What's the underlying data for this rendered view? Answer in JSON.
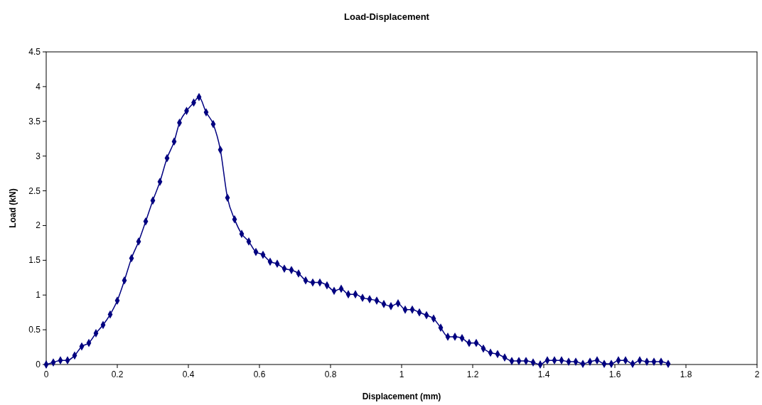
{
  "chart_data": {
    "type": "line",
    "title": "Load-Displacement",
    "xlabel": "Displacement (mm)",
    "ylabel": "Load (kN)",
    "xlim": [
      0,
      2
    ],
    "xticks": [
      0,
      0.2,
      0.4,
      0.6,
      0.8,
      1,
      1.2,
      1.4,
      1.6,
      1.8,
      2
    ],
    "ylim": [
      0,
      4.5
    ],
    "yticks": [
      0,
      0.5,
      1,
      1.5,
      2,
      2.5,
      3,
      3.5,
      4,
      4.5
    ],
    "grid": false,
    "marker": "diamond",
    "line_style": "solid",
    "series": [
      {
        "color": "#000080",
        "x": [
          0,
          0.02,
          0.04,
          0.06,
          0.08,
          0.1,
          0.12,
          0.14,
          0.16,
          0.18,
          0.2,
          0.22,
          0.24,
          0.26,
          0.28,
          0.3,
          0.32,
          0.34,
          0.36,
          0.375,
          0.395,
          0.415,
          0.43,
          0.45,
          0.47,
          0.49,
          0.51,
          0.53,
          0.55,
          0.57,
          0.59,
          0.61,
          0.63,
          0.65,
          0.67,
          0.69,
          0.71,
          0.73,
          0.75,
          0.77,
          0.79,
          0.81,
          0.83,
          0.85,
          0.87,
          0.89,
          0.91,
          0.93,
          0.95,
          0.97,
          0.99,
          1.01,
          1.03,
          1.05,
          1.07,
          1.09,
          1.11,
          1.13,
          1.15,
          1.17,
          1.19,
          1.21,
          1.23,
          1.25,
          1.27,
          1.29,
          1.31,
          1.33,
          1.35,
          1.37,
          1.39,
          1.41,
          1.43,
          1.45,
          1.47,
          1.49,
          1.51,
          1.53,
          1.55,
          1.57,
          1.59,
          1.61,
          1.63,
          1.65,
          1.67,
          1.69,
          1.71,
          1.73,
          1.75
        ],
        "values": [
          0,
          0.03,
          0.06,
          0.06,
          0.13,
          0.26,
          0.31,
          0.45,
          0.57,
          0.72,
          0.92,
          1.21,
          1.53,
          1.77,
          2.06,
          2.36,
          2.63,
          2.97,
          3.21,
          3.48,
          3.65,
          3.77,
          3.85,
          3.63,
          3.46,
          3.09,
          2.4,
          2.09,
          1.88,
          1.77,
          1.62,
          1.58,
          1.48,
          1.45,
          1.38,
          1.36,
          1.31,
          1.21,
          1.18,
          1.18,
          1.14,
          1.06,
          1.09,
          1.01,
          1.01,
          0.96,
          0.94,
          0.92,
          0.87,
          0.84,
          0.88,
          0.79,
          0.79,
          0.75,
          0.71,
          0.66,
          0.53,
          0.4,
          0.4,
          0.38,
          0.31,
          0.31,
          0.23,
          0.17,
          0.15,
          0.1,
          0.05,
          0.05,
          0.05,
          0.03,
          0,
          0.06,
          0.06,
          0.06,
          0.04,
          0.04,
          0.01,
          0.04,
          0.06,
          0.01,
          0.01,
          0.06,
          0.06,
          0.01,
          0.06,
          0.04,
          0.04,
          0.04,
          0.01
        ]
      }
    ]
  }
}
